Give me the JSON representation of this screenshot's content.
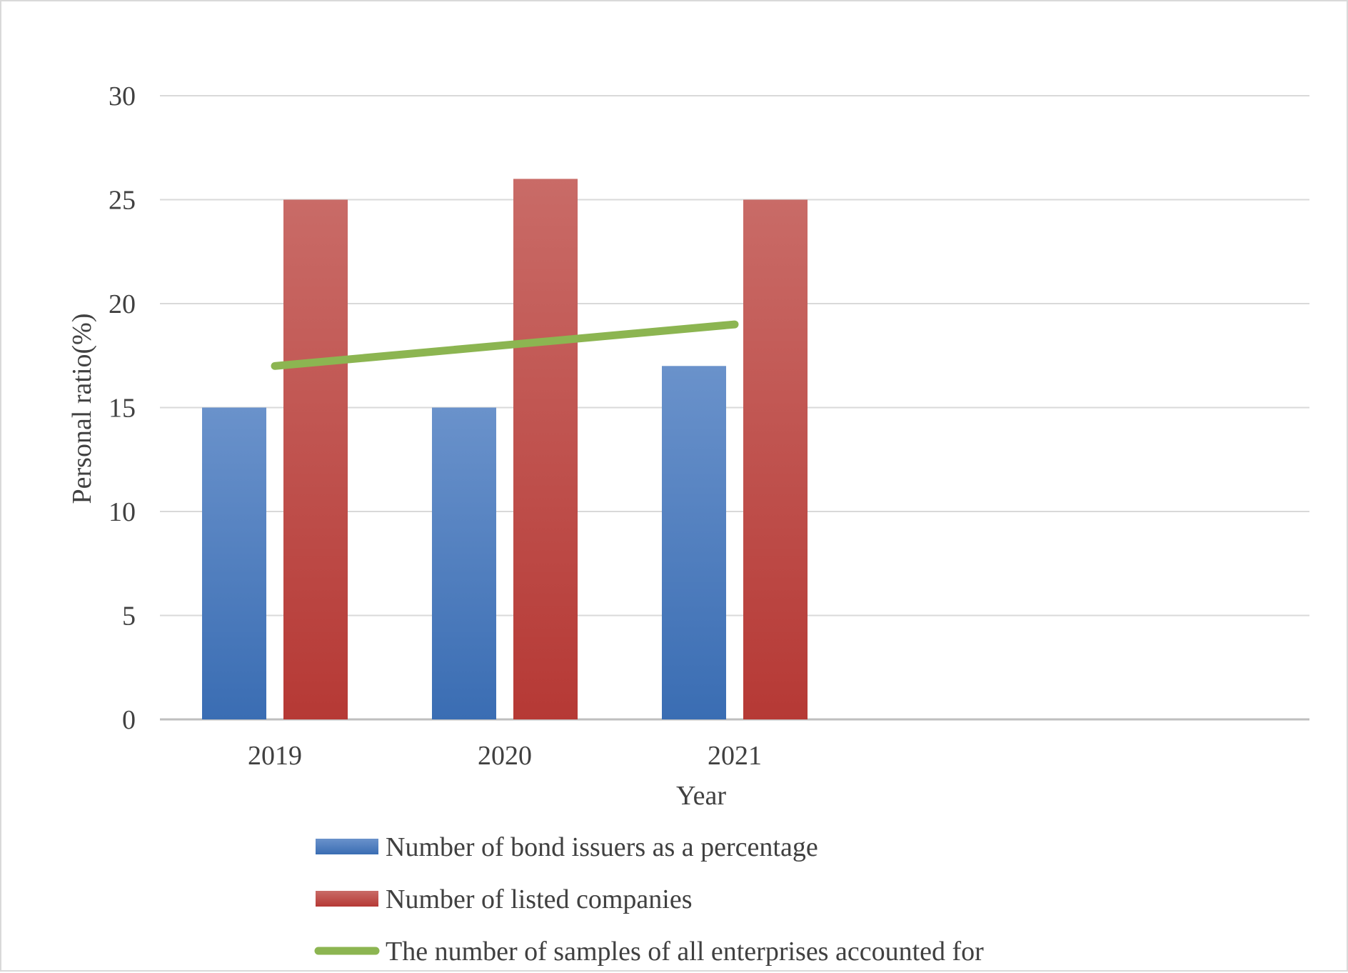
{
  "chart_data": {
    "type": "bar",
    "title": "",
    "xlabel": "Year",
    "ylabel": "Personal ratio(%)",
    "ylim": [
      0,
      30
    ],
    "yticks": [
      0,
      5,
      10,
      15,
      20,
      25,
      30
    ],
    "categories": [
      "2019",
      "2020",
      "2021",
      "",
      ""
    ],
    "grid": "horizontal",
    "legend_position": "bottom",
    "series": [
      {
        "name": "Number of bond issuers as a percentage",
        "type": "bar",
        "color": "#4472c4",
        "values": [
          15,
          15,
          17,
          null,
          null
        ]
      },
      {
        "name": "Number of listed companies",
        "type": "bar",
        "color": "#c0504d",
        "values": [
          25,
          26,
          25,
          null,
          null
        ]
      },
      {
        "name": "The number of samples of all enterprises accounted for",
        "type": "line",
        "color": "#8cb551",
        "values": [
          17,
          18,
          19,
          null,
          null
        ]
      }
    ]
  }
}
